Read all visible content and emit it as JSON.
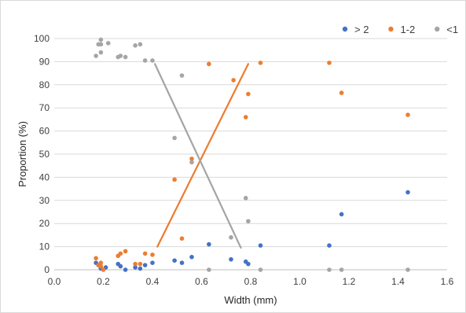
{
  "chart_data": {
    "type": "scatter",
    "xlabel": "Width (mm)",
    "ylabel": "Proportion (%)",
    "xlim": [
      0,
      1.6
    ],
    "ylim": [
      0,
      100
    ],
    "xticks": [
      "0.0",
      "0.2",
      "0.4",
      "0.6",
      "0.8",
      "1.0",
      "1.2",
      "1.4",
      "1.6"
    ],
    "yticks": [
      "0",
      "10",
      "20",
      "30",
      "40",
      "50",
      "60",
      "70",
      "80",
      "90",
      "100"
    ],
    "grid": "horizontal",
    "legend_position": "top-right",
    "series": [
      {
        "name": "> 2",
        "color": "#4472c4",
        "x": [
          0.17,
          0.18,
          0.19,
          0.19,
          0.21,
          0.26,
          0.27,
          0.29,
          0.33,
          0.35,
          0.37,
          0.4,
          0.49,
          0.52,
          0.56,
          0.63,
          0.72,
          0.78,
          0.79,
          0.84,
          1.12,
          1.17,
          1.44
        ],
        "y": [
          3,
          2,
          1,
          0.5,
          1,
          2.5,
          1.5,
          0,
          1,
          0.5,
          2,
          3,
          4,
          3,
          5.5,
          11,
          4.5,
          3.5,
          2.5,
          10.5,
          10.5,
          24,
          33.5
        ]
      },
      {
        "name": "1-2",
        "color": "#ed7d31",
        "x": [
          0.17,
          0.18,
          0.19,
          0.19,
          0.2,
          0.26,
          0.27,
          0.29,
          0.33,
          0.35,
          0.37,
          0.4,
          0.49,
          0.52,
          0.56,
          0.63,
          0.73,
          0.78,
          0.79,
          0.84,
          1.12,
          1.17,
          1.44
        ],
        "y": [
          5,
          2,
          3,
          1.5,
          0,
          6,
          7,
          8,
          2.5,
          2.5,
          7,
          6.5,
          39,
          13.5,
          48,
          89,
          82,
          66,
          76,
          89.5,
          89.5,
          76.5,
          67
        ]
      },
      {
        "name": "<1",
        "color": "#a5a5a5",
        "x": [
          0.17,
          0.18,
          0.19,
          0.19,
          0.19,
          0.22,
          0.26,
          0.27,
          0.29,
          0.33,
          0.35,
          0.37,
          0.4,
          0.49,
          0.52,
          0.56,
          0.63,
          0.72,
          0.78,
          0.79,
          0.84,
          1.12,
          1.17,
          1.44
        ],
        "y": [
          92.5,
          97.5,
          94,
          99.5,
          97.5,
          98,
          92,
          92.5,
          92,
          97,
          97.5,
          90.5,
          90.5,
          57,
          84,
          46.5,
          0,
          14,
          31,
          21,
          0,
          0,
          0,
          0
        ]
      }
    ],
    "trendlines": [
      {
        "series": "1-2",
        "color": "#ed7d31",
        "from": [
          0.42,
          10
        ],
        "to": [
          0.79,
          89
        ]
      },
      {
        "series": "<1",
        "color": "#a5a5a5",
        "from": [
          0.41,
          89
        ],
        "to": [
          0.76,
          9.5
        ]
      }
    ]
  }
}
